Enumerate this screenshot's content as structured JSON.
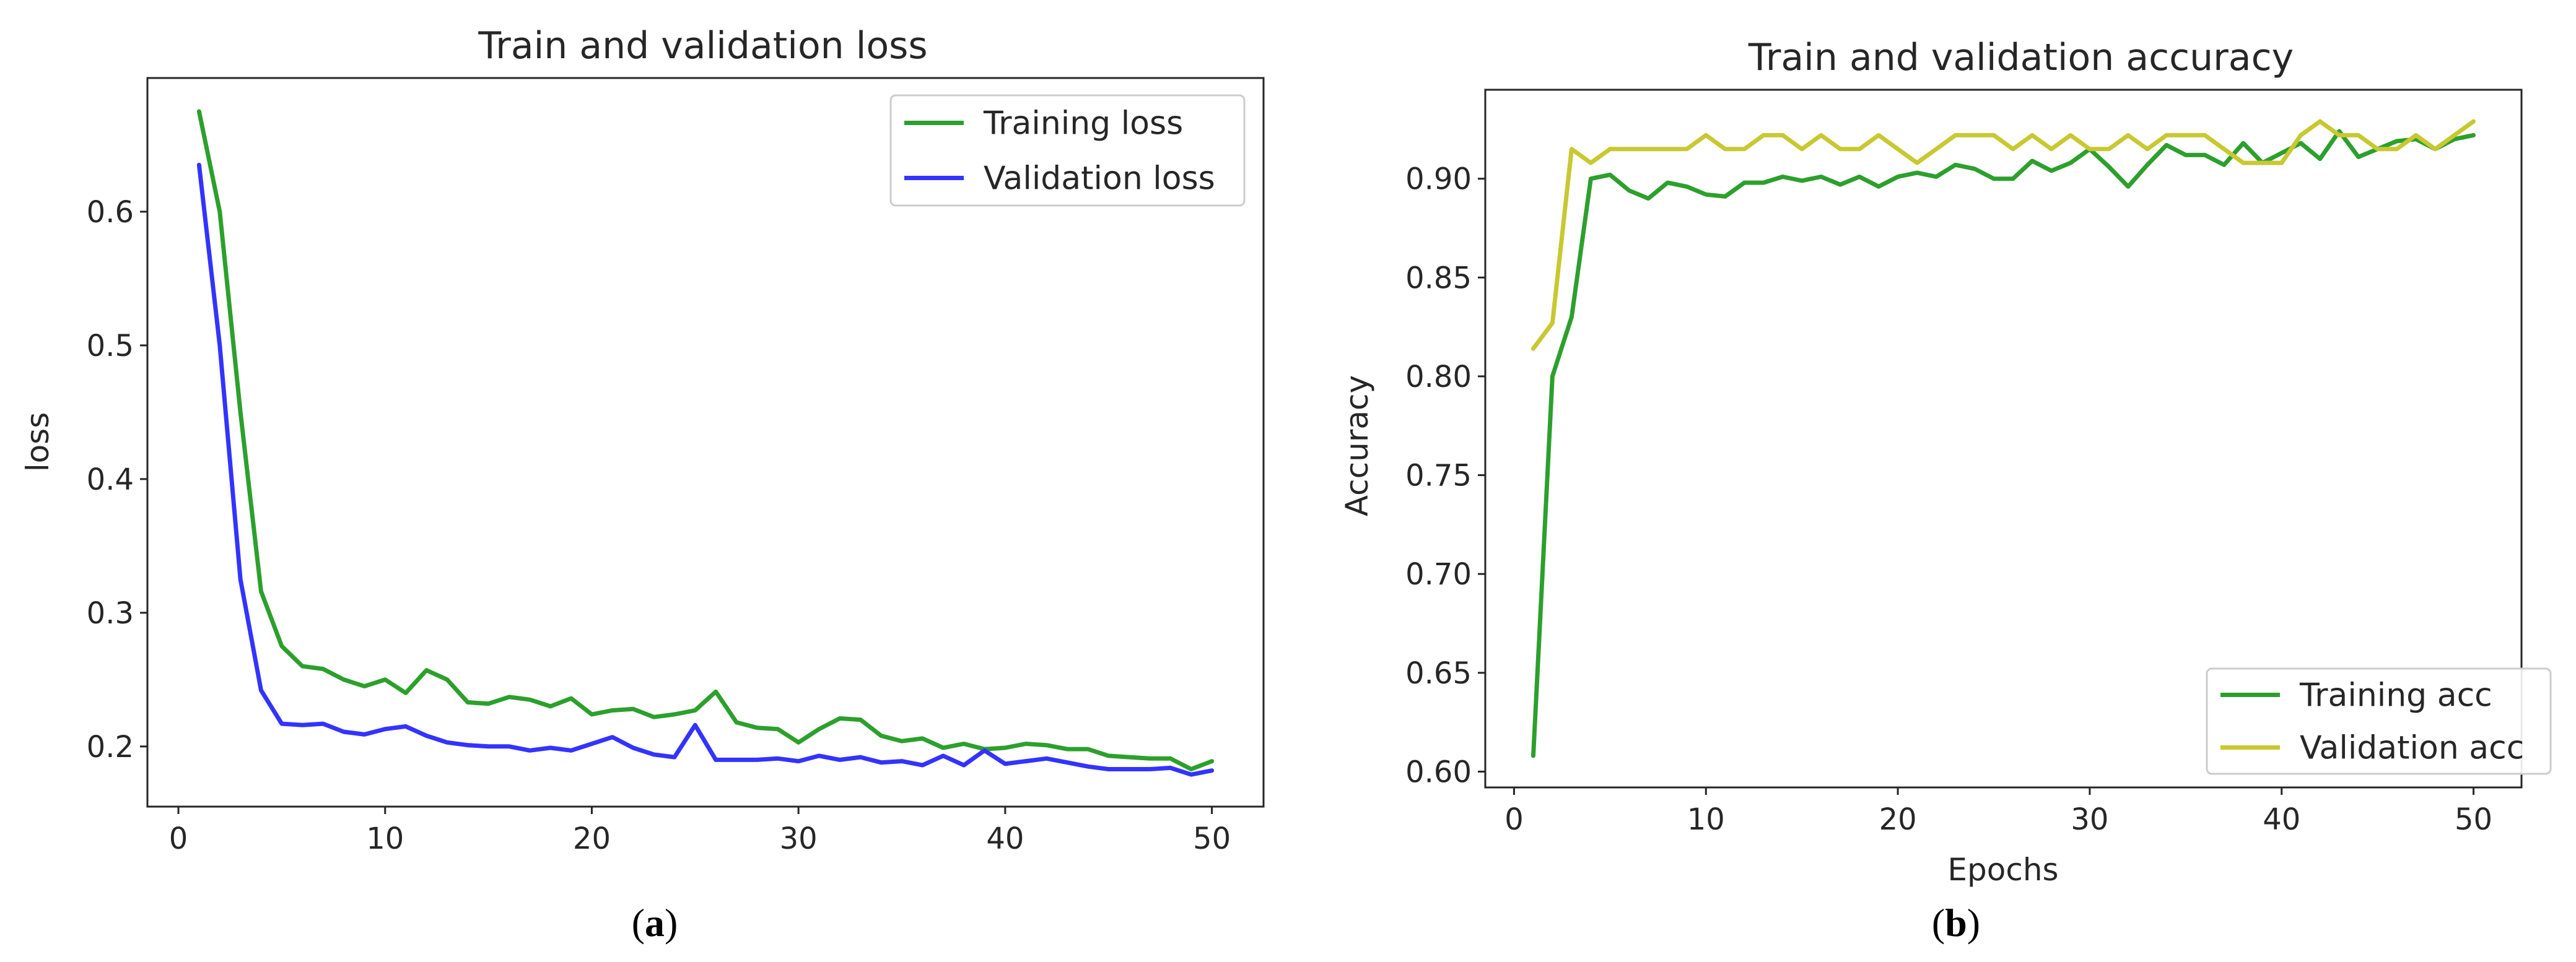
{
  "chart_data": [
    {
      "type": "line",
      "title": "Train and validation loss",
      "xlabel": "",
      "ylabel": "loss",
      "panel_label": {
        "open": "(",
        "letter": "a",
        "close": ")"
      },
      "xlim": [
        -1.5,
        52.5
      ],
      "ylim": [
        0.155,
        0.7
      ],
      "xticks": [
        0,
        10,
        20,
        30,
        40,
        50
      ],
      "xtick_labels": [
        "0",
        "10",
        "20",
        "30",
        "40",
        "50"
      ],
      "yticks": [
        0.2,
        0.3,
        0.4,
        0.5,
        0.6
      ],
      "ytick_labels": [
        "0.2",
        "0.3",
        "0.4",
        "0.5",
        "0.6"
      ],
      "legend_loc": "upper right",
      "x": [
        1,
        2,
        3,
        4,
        5,
        6,
        7,
        8,
        9,
        10,
        11,
        12,
        13,
        14,
        15,
        16,
        17,
        18,
        19,
        20,
        21,
        22,
        23,
        24,
        25,
        26,
        27,
        28,
        29,
        30,
        31,
        32,
        33,
        34,
        35,
        36,
        37,
        38,
        39,
        40,
        41,
        42,
        43,
        44,
        45,
        46,
        47,
        48,
        49,
        50
      ],
      "series": [
        {
          "name": "Training loss",
          "color": "#2ca02c",
          "values": [
            0.675,
            0.6,
            0.45,
            0.316,
            0.275,
            0.26,
            0.258,
            0.25,
            0.245,
            0.25,
            0.24,
            0.257,
            0.25,
            0.233,
            0.232,
            0.237,
            0.235,
            0.23,
            0.236,
            0.224,
            0.227,
            0.228,
            0.222,
            0.224,
            0.227,
            0.241,
            0.218,
            0.214,
            0.213,
            0.203,
            0.213,
            0.221,
            0.22,
            0.208,
            0.204,
            0.206,
            0.199,
            0.202,
            0.198,
            0.199,
            0.202,
            0.201,
            0.198,
            0.198,
            0.193,
            0.192,
            0.191,
            0.191,
            0.183,
            0.189
          ]
        },
        {
          "name": "Validation loss",
          "color": "#3333ff",
          "values": [
            0.635,
            0.5,
            0.325,
            0.242,
            0.217,
            0.216,
            0.217,
            0.211,
            0.209,
            0.213,
            0.215,
            0.208,
            0.203,
            0.201,
            0.2,
            0.2,
            0.197,
            0.199,
            0.197,
            0.202,
            0.207,
            0.199,
            0.194,
            0.192,
            0.216,
            0.19,
            0.19,
            0.19,
            0.191,
            0.189,
            0.193,
            0.19,
            0.192,
            0.188,
            0.189,
            0.186,
            0.193,
            0.186,
            0.197,
            0.187,
            0.189,
            0.191,
            0.188,
            0.185,
            0.183,
            0.183,
            0.183,
            0.184,
            0.179,
            0.182
          ]
        }
      ]
    },
    {
      "type": "line",
      "title": "Train and validation accuracy",
      "xlabel": "Epochs",
      "ylabel": "Accuracy",
      "panel_label": {
        "open": "(",
        "letter": "b",
        "close": ")"
      },
      "xlim": [
        -1.5,
        52.5
      ],
      "ylim": [
        0.592,
        0.945
      ],
      "xticks": [
        0,
        10,
        20,
        30,
        40,
        50
      ],
      "xtick_labels": [
        "0",
        "10",
        "20",
        "30",
        "40",
        "50"
      ],
      "yticks": [
        0.6,
        0.65,
        0.7,
        0.75,
        0.8,
        0.85,
        0.9
      ],
      "ytick_labels": [
        "0.60",
        "0.65",
        "0.70",
        "0.75",
        "0.80",
        "0.85",
        "0.90"
      ],
      "legend_loc": "lower right",
      "x": [
        1,
        2,
        3,
        4,
        5,
        6,
        7,
        8,
        9,
        10,
        11,
        12,
        13,
        14,
        15,
        16,
        17,
        18,
        19,
        20,
        21,
        22,
        23,
        24,
        25,
        26,
        27,
        28,
        29,
        30,
        31,
        32,
        33,
        34,
        35,
        36,
        37,
        38,
        39,
        40,
        41,
        42,
        43,
        44,
        45,
        46,
        47,
        48,
        49,
        50
      ],
      "series": [
        {
          "name": "Training acc",
          "color": "#2ca02c",
          "values": [
            0.608,
            0.8,
            0.83,
            0.9,
            0.902,
            0.894,
            0.89,
            0.898,
            0.896,
            0.892,
            0.891,
            0.898,
            0.898,
            0.901,
            0.899,
            0.901,
            0.897,
            0.901,
            0.896,
            0.901,
            0.903,
            0.901,
            0.907,
            0.905,
            0.9,
            0.9,
            0.909,
            0.904,
            0.908,
            0.915,
            0.906,
            0.896,
            0.907,
            0.917,
            0.912,
            0.912,
            0.907,
            0.918,
            0.908,
            0.913,
            0.918,
            0.91,
            0.924,
            0.911,
            0.915,
            0.919,
            0.92,
            0.915,
            0.92,
            0.922
          ]
        },
        {
          "name": "Validation acc",
          "color": "#c8c832",
          "values": [
            0.814,
            0.827,
            0.915,
            0.908,
            0.915,
            0.915,
            0.915,
            0.915,
            0.915,
            0.922,
            0.915,
            0.915,
            0.922,
            0.922,
            0.915,
            0.922,
            0.915,
            0.915,
            0.922,
            0.915,
            0.908,
            0.915,
            0.922,
            0.922,
            0.922,
            0.915,
            0.922,
            0.915,
            0.922,
            0.915,
            0.915,
            0.922,
            0.915,
            0.922,
            0.922,
            0.922,
            0.915,
            0.908,
            0.908,
            0.908,
            0.922,
            0.929,
            0.922,
            0.922,
            0.915,
            0.915,
            0.922,
            0.915,
            0.922,
            0.929
          ]
        }
      ]
    }
  ]
}
